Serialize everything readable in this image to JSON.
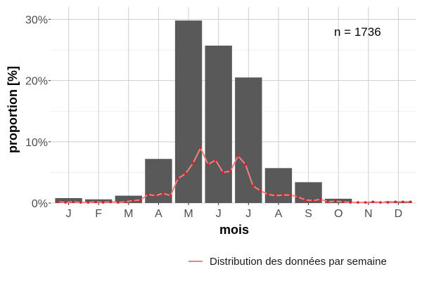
{
  "chart_data": {
    "type": "bar",
    "xlabel": "mois",
    "ylabel": "proportion [%]",
    "categories": [
      "J",
      "F",
      "M",
      "A",
      "M",
      "J",
      "J",
      "A",
      "S",
      "O",
      "N",
      "D"
    ],
    "values": [
      0.8,
      0.6,
      1.2,
      7.2,
      29.8,
      25.7,
      20.5,
      5.7,
      3.4,
      0.7,
      0.1,
      0.3
    ],
    "ylim": [
      0,
      32
    ],
    "yticks": [
      0,
      10,
      20,
      30
    ],
    "ytick_labels": [
      "0%",
      "10%",
      "20%",
      "30%"
    ],
    "grid": true,
    "annotation": "n = 1736",
    "bar_color": "#595959",
    "line_color": "#f08080",
    "point_color": "#e41a1c",
    "series": [
      {
        "name": "Distribution des données par semaine",
        "type": "line",
        "x": [
          0.65,
          0.9,
          1.15,
          1.4,
          1.65,
          1.9,
          2.15,
          2.4,
          2.65,
          2.9,
          3.15,
          3.4,
          3.65,
          3.9,
          4.15,
          4.4,
          4.65,
          4.9,
          5.15,
          5.4,
          5.65,
          5.9,
          6.15,
          6.4,
          6.65,
          6.9,
          7.15,
          7.4,
          7.65,
          7.9,
          8.15,
          8.4,
          8.65,
          8.9,
          9.15,
          9.4,
          9.65,
          9.9,
          10.15,
          10.4,
          10.65,
          10.9,
          11.15,
          11.4,
          11.65,
          11.9,
          12.15,
          12.4
        ],
        "y": [
          0.2,
          0.1,
          0.2,
          0.1,
          0.1,
          0.2,
          0.1,
          0.2,
          0.1,
          0.2,
          0.4,
          0.5,
          1.4,
          1.2,
          1.6,
          1.2,
          4.0,
          4.8,
          6.5,
          9.0,
          6.3,
          7.0,
          5.0,
          5.2,
          7.7,
          6.3,
          2.8,
          2.0,
          1.4,
          1.2,
          1.3,
          1.3,
          1.0,
          0.5,
          0.4,
          0.6,
          0.2,
          0.3,
          0.2,
          0.1,
          0.1,
          0.1,
          0.2,
          0.1,
          0.1,
          0.2,
          0.2,
          0.2
        ]
      }
    ],
    "legend_position": "bottom-right"
  }
}
